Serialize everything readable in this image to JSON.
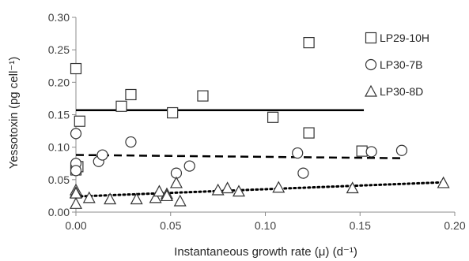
{
  "chart_data": {
    "type": "scatter",
    "title": "",
    "xlabel": "Instantaneous growth rate (μ) (d⁻¹)",
    "ylabel": "Yessotoxin (pg cell⁻¹)",
    "xlim": [
      0,
      0.2
    ],
    "ylim": [
      0,
      0.3
    ],
    "xticks": [
      "0.00",
      "0.05",
      "0.10",
      "0.15",
      "0.20"
    ],
    "yticks": [
      "0.00",
      "0.05",
      "0.10",
      "0.15",
      "0.20",
      "0.25",
      "0.30"
    ],
    "grid": false,
    "legend_position": "top-right",
    "series": [
      {
        "name": "LP29-10H",
        "marker": "square",
        "line_style": "solid",
        "trend": [
          [
            0.0,
            0.157
          ],
          [
            0.152,
            0.157
          ]
        ],
        "points": [
          [
            0.0,
            0.221
          ],
          [
            0.0,
            0.065
          ],
          [
            0.001,
            0.07
          ],
          [
            0.002,
            0.14
          ],
          [
            0.024,
            0.163
          ],
          [
            0.029,
            0.181
          ],
          [
            0.051,
            0.153
          ],
          [
            0.067,
            0.179
          ],
          [
            0.104,
            0.146
          ],
          [
            0.123,
            0.261
          ],
          [
            0.123,
            0.122
          ],
          [
            0.151,
            0.094
          ]
        ]
      },
      {
        "name": "LP30-7B",
        "marker": "circle",
        "line_style": "dashed",
        "trend": [
          [
            0.0,
            0.088
          ],
          [
            0.173,
            0.083
          ]
        ],
        "points": [
          [
            0.0,
            0.121
          ],
          [
            0.0,
            0.075
          ],
          [
            0.0,
            0.064
          ],
          [
            0.012,
            0.078
          ],
          [
            0.014,
            0.088
          ],
          [
            0.029,
            0.108
          ],
          [
            0.053,
            0.06
          ],
          [
            0.06,
            0.071
          ],
          [
            0.117,
            0.091
          ],
          [
            0.12,
            0.06
          ],
          [
            0.156,
            0.093
          ],
          [
            0.172,
            0.095
          ]
        ]
      },
      {
        "name": "LP30-8D",
        "marker": "triangle",
        "line_style": "dotted",
        "trend": [
          [
            0.0,
            0.024
          ],
          [
            0.195,
            0.046
          ]
        ],
        "points": [
          [
            0.0,
            0.034
          ],
          [
            0.0,
            0.03
          ],
          [
            0.0,
            0.029
          ],
          [
            0.0,
            0.013
          ],
          [
            0.007,
            0.022
          ],
          [
            0.018,
            0.02
          ],
          [
            0.032,
            0.02
          ],
          [
            0.042,
            0.022
          ],
          [
            0.044,
            0.032
          ],
          [
            0.048,
            0.028
          ],
          [
            0.048,
            0.025
          ],
          [
            0.053,
            0.045
          ],
          [
            0.055,
            0.017
          ],
          [
            0.075,
            0.034
          ],
          [
            0.08,
            0.037
          ],
          [
            0.086,
            0.032
          ],
          [
            0.107,
            0.038
          ],
          [
            0.146,
            0.037
          ],
          [
            0.194,
            0.045
          ]
        ]
      }
    ]
  }
}
